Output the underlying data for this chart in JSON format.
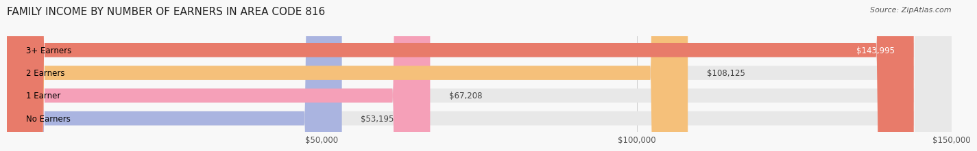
{
  "title": "FAMILY INCOME BY NUMBER OF EARNERS IN AREA CODE 816",
  "source": "Source: ZipAtlas.com",
  "categories": [
    "No Earners",
    "1 Earner",
    "2 Earners",
    "3+ Earners"
  ],
  "values": [
    53195,
    67208,
    108125,
    143995
  ],
  "bar_colors": [
    "#aab4e0",
    "#f5a0b8",
    "#f5c07a",
    "#e87b6a"
  ],
  "bar_bg_color": "#f0f0f0",
  "label_values": [
    "$53,195",
    "$67,208",
    "$108,125",
    "$143,995"
  ],
  "xmin": 0,
  "xmax": 150000,
  "xticks": [
    50000,
    100000,
    150000
  ],
  "xtick_labels": [
    "$50,000",
    "$100,000",
    "$150,000"
  ],
  "title_fontsize": 11,
  "source_fontsize": 8,
  "tick_fontsize": 8.5,
  "label_fontsize": 8.5,
  "cat_fontsize": 8.5,
  "background_color": "#f8f8f8"
}
